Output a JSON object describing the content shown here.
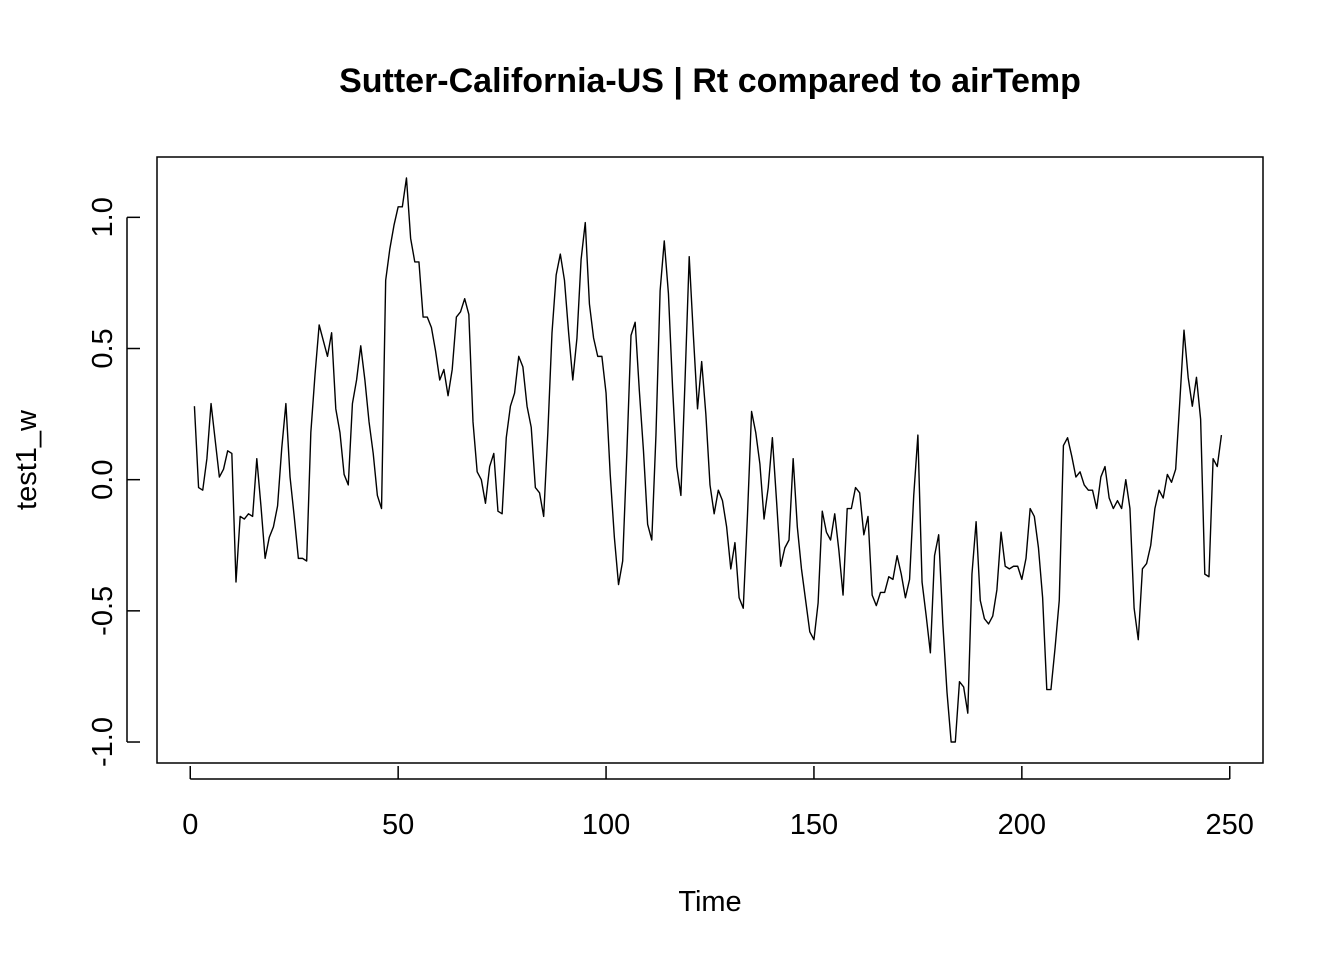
{
  "chart_data": {
    "type": "line",
    "title": "Sutter-California-US | Rt compared to airTemp",
    "xlabel": "Time",
    "ylabel": "test1_w",
    "xlim": [
      -8,
      258
    ],
    "ylim": [
      -1.08,
      1.23
    ],
    "x_ticks": [
      0,
      50,
      100,
      150,
      200,
      250
    ],
    "x_tick_labels": [
      "0",
      "50",
      "100",
      "150",
      "200",
      "250"
    ],
    "y_ticks": [
      -1.0,
      -0.5,
      0.0,
      0.5,
      1.0
    ],
    "y_tick_labels": [
      "-1.0",
      "-0.5",
      "0.0",
      "0.5",
      "1.0"
    ],
    "grid": false,
    "x_start": 1,
    "series": [
      {
        "name": "test1_w",
        "values": [
          0.28,
          -0.03,
          -0.04,
          0.08,
          0.29,
          0.15,
          0.01,
          0.04,
          0.11,
          0.1,
          -0.39,
          -0.14,
          -0.15,
          -0.13,
          -0.14,
          0.08,
          -0.1,
          -0.3,
          -0.22,
          -0.18,
          -0.1,
          0.12,
          0.29,
          0.01,
          -0.14,
          -0.3,
          -0.3,
          -0.31,
          0.18,
          0.4,
          0.59,
          0.53,
          0.47,
          0.56,
          0.27,
          0.18,
          0.02,
          -0.02,
          0.29,
          0.38,
          0.51,
          0.38,
          0.22,
          0.1,
          -0.06,
          -0.11,
          0.76,
          0.88,
          0.97,
          1.04,
          1.04,
          1.15,
          0.92,
          0.83,
          0.83,
          0.62,
          0.62,
          0.58,
          0.49,
          0.38,
          0.42,
          0.32,
          0.42,
          0.62,
          0.64,
          0.69,
          0.63,
          0.22,
          0.03,
          0.0,
          -0.09,
          0.05,
          0.1,
          -0.12,
          -0.13,
          0.16,
          0.28,
          0.33,
          0.47,
          0.43,
          0.28,
          0.2,
          -0.03,
          -0.05,
          -0.14,
          0.18,
          0.56,
          0.78,
          0.86,
          0.76,
          0.56,
          0.38,
          0.54,
          0.84,
          0.98,
          0.67,
          0.54,
          0.47,
          0.47,
          0.33,
          0.02,
          -0.22,
          -0.4,
          -0.31,
          0.1,
          0.55,
          0.6,
          0.34,
          0.11,
          -0.17,
          -0.23,
          0.17,
          0.72,
          0.91,
          0.71,
          0.35,
          0.05,
          -0.06,
          0.38,
          0.85,
          0.55,
          0.27,
          0.45,
          0.25,
          -0.02,
          -0.13,
          -0.04,
          -0.08,
          -0.18,
          -0.34,
          -0.24,
          -0.45,
          -0.49,
          -0.14,
          0.26,
          0.18,
          0.06,
          -0.15,
          -0.03,
          0.16,
          -0.08,
          -0.33,
          -0.26,
          -0.23,
          0.08,
          -0.18,
          -0.34,
          -0.46,
          -0.58,
          -0.61,
          -0.47,
          -0.12,
          -0.2,
          -0.23,
          -0.13,
          -0.27,
          -0.44,
          -0.11,
          -0.11,
          -0.03,
          -0.05,
          -0.21,
          -0.14,
          -0.44,
          -0.48,
          -0.43,
          -0.43,
          -0.37,
          -0.38,
          -0.29,
          -0.36,
          -0.45,
          -0.38,
          -0.06,
          0.17,
          -0.39,
          -0.52,
          -0.66,
          -0.29,
          -0.21,
          -0.55,
          -0.81,
          -1.0,
          -1.0,
          -0.77,
          -0.79,
          -0.89,
          -0.36,
          -0.16,
          -0.46,
          -0.53,
          -0.55,
          -0.52,
          -0.42,
          -0.2,
          -0.33,
          -0.34,
          -0.33,
          -0.33,
          -0.38,
          -0.3,
          -0.11,
          -0.14,
          -0.26,
          -0.45,
          -0.8,
          -0.8,
          -0.64,
          -0.46,
          0.13,
          0.16,
          0.09,
          0.01,
          0.03,
          -0.02,
          -0.04,
          -0.04,
          -0.11,
          0.01,
          0.05,
          -0.07,
          -0.11,
          -0.08,
          -0.11,
          0.0,
          -0.11,
          -0.49,
          -0.61,
          -0.34,
          -0.32,
          -0.25,
          -0.11,
          -0.04,
          -0.07,
          0.02,
          -0.01,
          0.04,
          0.3,
          0.57,
          0.39,
          0.28,
          0.39,
          0.23,
          -0.36,
          -0.37,
          0.08,
          0.05,
          0.17
        ]
      }
    ]
  }
}
